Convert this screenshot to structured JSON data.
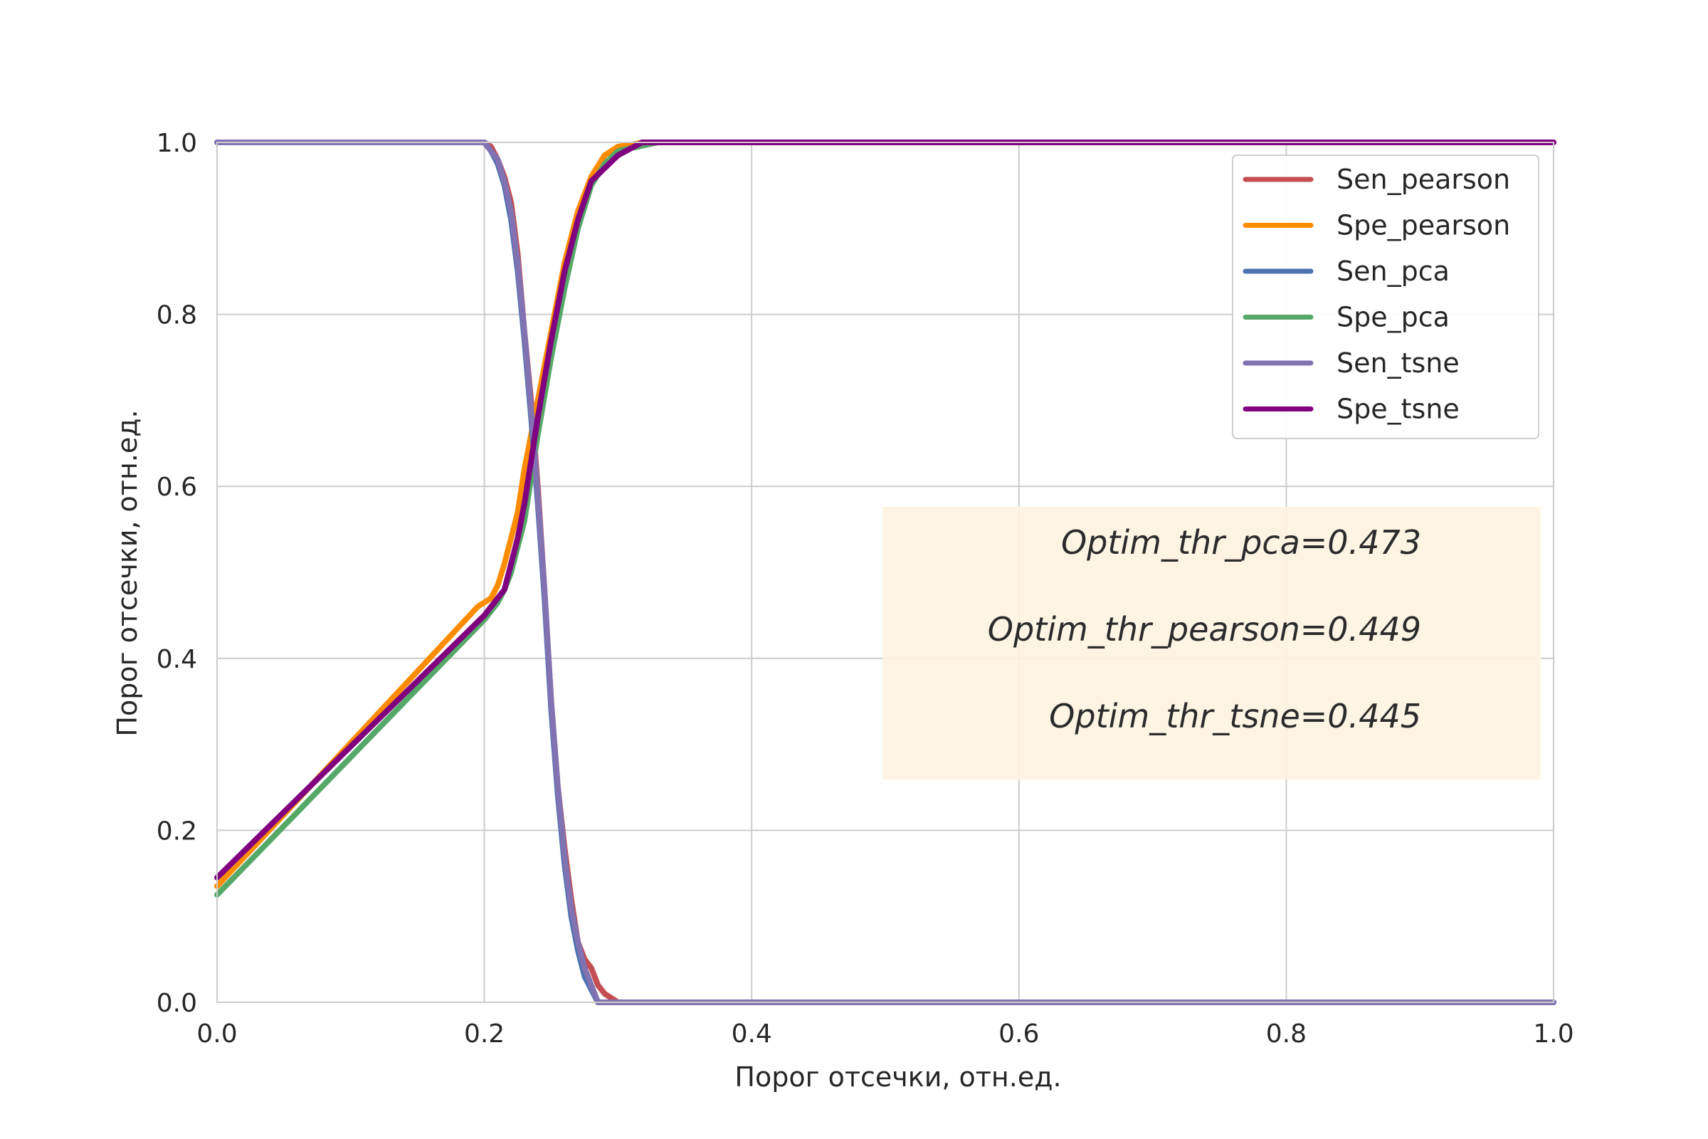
{
  "chart_data": {
    "type": "line",
    "xlabel": "Порог отсечки, отн.ед.",
    "ylabel": "Порог отсечки, отн.ед.",
    "xlim": [
      0.0,
      1.0
    ],
    "ylim": [
      0.0,
      1.0
    ],
    "xticks": [
      "0.0",
      "0.2",
      "0.4",
      "0.6",
      "0.8",
      "1.0"
    ],
    "yticks": [
      "0.0",
      "0.2",
      "0.4",
      "0.6",
      "0.8",
      "1.0"
    ],
    "grid": true,
    "legend_position": "top-right",
    "series": [
      {
        "name": "Sen_pearson",
        "color": "#c44e52",
        "x": [
          0.0,
          0.2,
          0.205,
          0.21,
          0.215,
          0.22,
          0.225,
          0.23,
          0.235,
          0.24,
          0.245,
          0.25,
          0.255,
          0.26,
          0.265,
          0.27,
          0.275,
          0.28,
          0.285,
          0.29,
          0.295,
          0.3,
          1.0
        ],
        "y": [
          1.0,
          1.0,
          0.995,
          0.98,
          0.96,
          0.93,
          0.87,
          0.78,
          0.7,
          0.6,
          0.48,
          0.35,
          0.25,
          0.18,
          0.12,
          0.07,
          0.05,
          0.04,
          0.02,
          0.01,
          0.005,
          0.0,
          0.0
        ]
      },
      {
        "name": "Spe_pearson",
        "color": "#ff8c00",
        "x": [
          0.0,
          0.195,
          0.2,
          0.205,
          0.21,
          0.215,
          0.22,
          0.225,
          0.23,
          0.24,
          0.25,
          0.26,
          0.27,
          0.28,
          0.29,
          0.3,
          0.32,
          1.0
        ],
        "y": [
          0.135,
          0.46,
          0.465,
          0.47,
          0.485,
          0.51,
          0.54,
          0.57,
          0.62,
          0.7,
          0.78,
          0.86,
          0.92,
          0.96,
          0.985,
          0.995,
          1.0,
          1.0
        ]
      },
      {
        "name": "Sen_pca",
        "color": "#4c72b0",
        "x": [
          0.0,
          0.2,
          0.205,
          0.21,
          0.215,
          0.22,
          0.225,
          0.23,
          0.235,
          0.24,
          0.245,
          0.25,
          0.255,
          0.26,
          0.265,
          0.27,
          0.275,
          0.28,
          0.285,
          1.0
        ],
        "y": [
          1.0,
          1.0,
          0.99,
          0.975,
          0.95,
          0.91,
          0.85,
          0.77,
          0.68,
          0.58,
          0.47,
          0.34,
          0.24,
          0.16,
          0.1,
          0.06,
          0.03,
          0.015,
          0.0,
          0.0
        ]
      },
      {
        "name": "Spe_pca",
        "color": "#55a868",
        "x": [
          0.0,
          0.2,
          0.205,
          0.21,
          0.215,
          0.22,
          0.225,
          0.23,
          0.24,
          0.25,
          0.26,
          0.27,
          0.28,
          0.29,
          0.3,
          0.33,
          1.0
        ],
        "y": [
          0.125,
          0.445,
          0.455,
          0.465,
          0.48,
          0.5,
          0.53,
          0.56,
          0.66,
          0.75,
          0.83,
          0.9,
          0.95,
          0.975,
          0.99,
          1.0,
          1.0
        ]
      },
      {
        "name": "Sen_tsne",
        "color": "#8172b2",
        "x": [
          0.0,
          0.2,
          0.205,
          0.21,
          0.215,
          0.22,
          0.225,
          0.23,
          0.235,
          0.24,
          0.245,
          0.25,
          0.255,
          0.26,
          0.265,
          0.27,
          0.275,
          0.28,
          0.285,
          1.0
        ],
        "y": [
          1.0,
          1.0,
          0.99,
          0.98,
          0.955,
          0.92,
          0.86,
          0.78,
          0.69,
          0.59,
          0.48,
          0.35,
          0.25,
          0.17,
          0.11,
          0.07,
          0.04,
          0.02,
          0.0,
          0.0
        ]
      },
      {
        "name": "Spe_tsne",
        "color": "#800080",
        "x": [
          0.0,
          0.2,
          0.205,
          0.21,
          0.215,
          0.22,
          0.225,
          0.23,
          0.24,
          0.25,
          0.26,
          0.27,
          0.28,
          0.29,
          0.3,
          0.318,
          1.0
        ],
        "y": [
          0.145,
          0.45,
          0.46,
          0.47,
          0.48,
          0.51,
          0.54,
          0.58,
          0.68,
          0.77,
          0.85,
          0.91,
          0.955,
          0.97,
          0.985,
          1.0,
          1.0
        ]
      }
    ],
    "annotations": [
      "Optim_thr_pca=0.473",
      "Optim_thr_pearson=0.449",
      "Optim_thr_tsne=0.445"
    ]
  }
}
